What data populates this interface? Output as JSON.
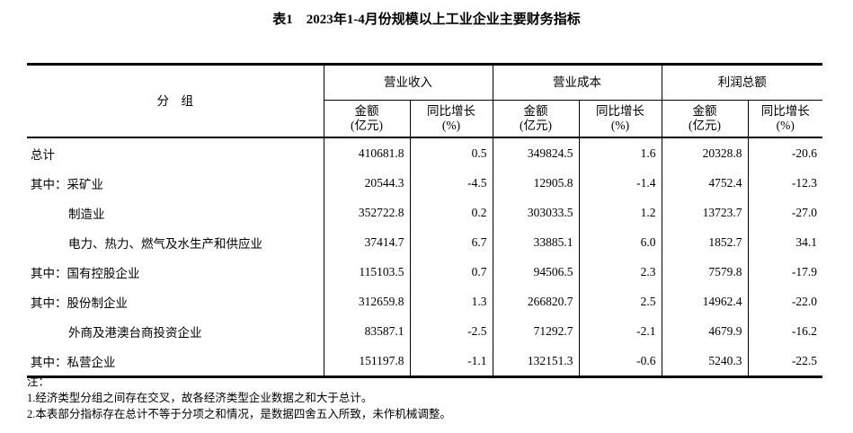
{
  "title": "表1　2023年1-4月份规模以上工业企业主要财务指标",
  "header": {
    "group_label": "分　组",
    "sections": [
      "营业收入",
      "营业成本",
      "利润总额"
    ],
    "amount_label": "金额",
    "amount_unit": "(亿元)",
    "growth_label": "同比增长",
    "growth_unit": "(%)"
  },
  "rows": [
    {
      "name": "总计",
      "indent": false,
      "v": [
        "410681.8",
        "0.5",
        "349824.5",
        "1.6",
        "20328.8",
        "-20.6"
      ]
    },
    {
      "name": "其中：采矿业",
      "indent": false,
      "v": [
        "20544.3",
        "-4.5",
        "12905.8",
        "-1.4",
        "4752.4",
        "-12.3"
      ]
    },
    {
      "name": "制造业",
      "indent": true,
      "v": [
        "352722.8",
        "0.2",
        "303033.5",
        "1.2",
        "13723.7",
        "-27.0"
      ]
    },
    {
      "name": "电力、热力、燃气及水生产和供应业",
      "indent": true,
      "v": [
        "37414.7",
        "6.7",
        "33885.1",
        "6.0",
        "1852.7",
        "34.1"
      ]
    },
    {
      "name": "其中：国有控股企业",
      "indent": false,
      "v": [
        "115103.5",
        "0.7",
        "94506.5",
        "2.3",
        "7579.8",
        "-17.9"
      ]
    },
    {
      "name": "其中：股份制企业",
      "indent": false,
      "v": [
        "312659.8",
        "1.3",
        "266820.7",
        "2.5",
        "14962.4",
        "-22.0"
      ]
    },
    {
      "name": "外商及港澳台商投资企业",
      "indent": true,
      "v": [
        "83587.1",
        "-2.5",
        "71292.7",
        "-2.1",
        "4679.9",
        "-16.2"
      ]
    },
    {
      "name": "其中：私营企业",
      "indent": false,
      "v": [
        "151197.8",
        "-1.1",
        "132151.3",
        "-0.6",
        "5240.3",
        "-22.5"
      ]
    }
  ],
  "notes": [
    "注：",
    "1.经济类型分组之间存在交叉，故各经济类型企业数据之和大于总计。",
    "2.本表部分指标存在总计不等于分项之和情况，是数据四舍五入所致，未作机械调整。"
  ]
}
